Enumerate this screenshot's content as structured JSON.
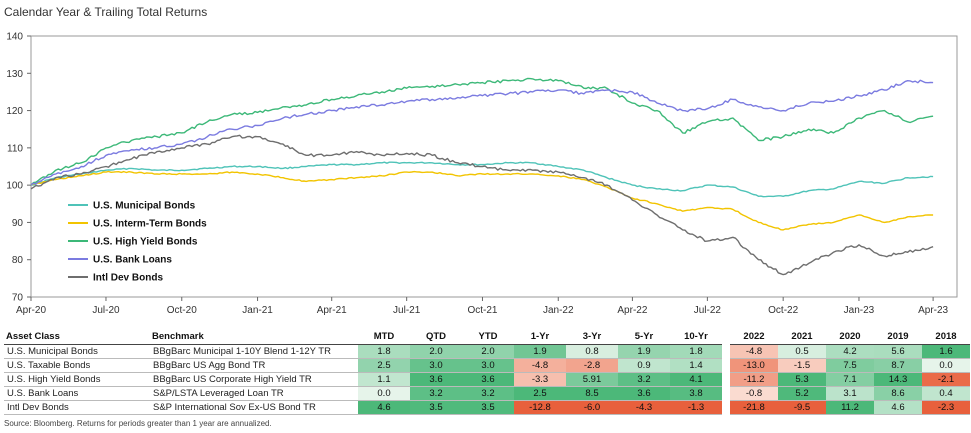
{
  "title": "Calendar Year & Trailing Total Returns",
  "source": "Source: Bloomberg. Returns for periods greater than 1 year are annualized.",
  "chart_data": {
    "type": "line",
    "ylim": [
      70,
      140
    ],
    "yticks": [
      70,
      80,
      90,
      100,
      110,
      120,
      130,
      140
    ],
    "xlim": [
      "2020-04-01",
      "2023-04-30"
    ],
    "xticks": [
      {
        "date": "2020-04-01",
        "label": "Apr-20"
      },
      {
        "date": "2020-07-01",
        "label": "Jul-20"
      },
      {
        "date": "2020-10-01",
        "label": "Oct-20"
      },
      {
        "date": "2021-01-01",
        "label": "Jan-21"
      },
      {
        "date": "2021-04-01",
        "label": "Apr-21"
      },
      {
        "date": "2021-07-01",
        "label": "Jul-21"
      },
      {
        "date": "2021-10-01",
        "label": "Oct-21"
      },
      {
        "date": "2022-01-01",
        "label": "Jan-22"
      },
      {
        "date": "2022-04-01",
        "label": "Apr-22"
      },
      {
        "date": "2022-07-01",
        "label": "Jul-22"
      },
      {
        "date": "2022-10-01",
        "label": "Oct-22"
      },
      {
        "date": "2023-01-01",
        "label": "Jan-23"
      },
      {
        "date": "2023-04-01",
        "label": "Apr-23"
      }
    ],
    "grid": false,
    "legend": "left",
    "series": [
      {
        "name": "U.S.  Municipal Bonds",
        "color": "#4fc3b8",
        "points": [
          [
            "2020-04-01",
            100
          ],
          [
            "2020-05-01",
            102
          ],
          [
            "2020-06-01",
            103
          ],
          [
            "2020-07-01",
            104
          ],
          [
            "2020-08-01",
            104.5
          ],
          [
            "2020-09-01",
            104
          ],
          [
            "2020-10-01",
            104
          ],
          [
            "2020-11-01",
            104.5
          ],
          [
            "2020-12-01",
            105
          ],
          [
            "2021-01-01",
            105
          ],
          [
            "2021-02-01",
            104.5
          ],
          [
            "2021-03-01",
            105
          ],
          [
            "2021-04-01",
            105.5
          ],
          [
            "2021-05-01",
            105.5
          ],
          [
            "2021-06-01",
            106
          ],
          [
            "2021-07-01",
            106
          ],
          [
            "2021-08-01",
            106
          ],
          [
            "2021-09-01",
            105.5
          ],
          [
            "2021-10-01",
            105.5
          ],
          [
            "2021-11-01",
            106
          ],
          [
            "2021-12-01",
            106
          ],
          [
            "2022-01-01",
            105
          ],
          [
            "2022-02-01",
            104
          ],
          [
            "2022-03-01",
            102
          ],
          [
            "2022-04-01",
            100
          ],
          [
            "2022-05-01",
            99
          ],
          [
            "2022-06-01",
            98.5
          ],
          [
            "2022-07-01",
            100
          ],
          [
            "2022-08-01",
            99.5
          ],
          [
            "2022-09-01",
            97
          ],
          [
            "2022-10-01",
            97
          ],
          [
            "2022-11-01",
            98.5
          ],
          [
            "2022-12-01",
            99
          ],
          [
            "2023-01-01",
            101
          ],
          [
            "2023-02-01",
            100.5
          ],
          [
            "2023-03-01",
            102
          ],
          [
            "2023-04-01",
            102.3
          ]
        ]
      },
      {
        "name": "U.S. Interm-Term Bonds",
        "color": "#f2c400",
        "points": [
          [
            "2020-04-01",
            100
          ],
          [
            "2020-05-01",
            101.5
          ],
          [
            "2020-06-01",
            102.5
          ],
          [
            "2020-07-01",
            103.5
          ],
          [
            "2020-08-01",
            103.5
          ],
          [
            "2020-09-01",
            103
          ],
          [
            "2020-10-01",
            103
          ],
          [
            "2020-11-01",
            103
          ],
          [
            "2020-12-01",
            103.5
          ],
          [
            "2021-01-01",
            103
          ],
          [
            "2021-02-01",
            102
          ],
          [
            "2021-03-01",
            101
          ],
          [
            "2021-04-01",
            101.5
          ],
          [
            "2021-05-01",
            102
          ],
          [
            "2021-06-01",
            102.5
          ],
          [
            "2021-07-01",
            103.5
          ],
          [
            "2021-08-01",
            103.5
          ],
          [
            "2021-09-01",
            102.5
          ],
          [
            "2021-10-01",
            103
          ],
          [
            "2021-11-01",
            103
          ],
          [
            "2021-12-01",
            103
          ],
          [
            "2022-01-01",
            102.5
          ],
          [
            "2022-02-01",
            101.5
          ],
          [
            "2022-03-01",
            99.5
          ],
          [
            "2022-04-01",
            96.5
          ],
          [
            "2022-05-01",
            95
          ],
          [
            "2022-06-01",
            93
          ],
          [
            "2022-07-01",
            94
          ],
          [
            "2022-08-01",
            93.5
          ],
          [
            "2022-09-01",
            90
          ],
          [
            "2022-10-01",
            88
          ],
          [
            "2022-11-01",
            89.5
          ],
          [
            "2022-12-01",
            90
          ],
          [
            "2023-01-01",
            92
          ],
          [
            "2023-02-01",
            90
          ],
          [
            "2023-03-01",
            91.5
          ],
          [
            "2023-04-01",
            92
          ]
        ]
      },
      {
        "name": "U.S. High Yield Bonds",
        "color": "#3cb878",
        "points": [
          [
            "2020-04-01",
            100
          ],
          [
            "2020-05-01",
            104
          ],
          [
            "2020-06-01",
            106
          ],
          [
            "2020-07-01",
            110
          ],
          [
            "2020-08-01",
            112
          ],
          [
            "2020-09-01",
            113
          ],
          [
            "2020-10-01",
            114
          ],
          [
            "2020-11-01",
            117
          ],
          [
            "2020-12-01",
            119
          ],
          [
            "2021-01-01",
            119.5
          ],
          [
            "2021-02-01",
            121
          ],
          [
            "2021-03-01",
            121.5
          ],
          [
            "2021-04-01",
            123
          ],
          [
            "2021-05-01",
            124
          ],
          [
            "2021-06-01",
            125
          ],
          [
            "2021-07-01",
            126
          ],
          [
            "2021-08-01",
            126.5
          ],
          [
            "2021-09-01",
            127
          ],
          [
            "2021-10-01",
            127.5
          ],
          [
            "2021-11-01",
            128
          ],
          [
            "2021-12-01",
            128.5
          ],
          [
            "2022-01-01",
            128
          ],
          [
            "2022-02-01",
            126
          ],
          [
            "2022-03-01",
            126
          ],
          [
            "2022-04-01",
            122
          ],
          [
            "2022-05-01",
            120
          ],
          [
            "2022-06-01",
            114
          ],
          [
            "2022-07-01",
            117
          ],
          [
            "2022-08-01",
            118
          ],
          [
            "2022-09-01",
            112
          ],
          [
            "2022-10-01",
            113
          ],
          [
            "2022-11-01",
            115
          ],
          [
            "2022-12-01",
            114
          ],
          [
            "2023-01-01",
            118
          ],
          [
            "2023-02-01",
            120
          ],
          [
            "2023-03-01",
            117
          ],
          [
            "2023-04-01",
            118.5
          ]
        ]
      },
      {
        "name": "U.S. Bank Loans",
        "color": "#7b7be0",
        "points": [
          [
            "2020-04-01",
            100
          ],
          [
            "2020-05-01",
            103
          ],
          [
            "2020-06-01",
            105
          ],
          [
            "2020-07-01",
            108
          ],
          [
            "2020-08-01",
            109.5
          ],
          [
            "2020-09-01",
            110
          ],
          [
            "2020-10-01",
            111
          ],
          [
            "2020-11-01",
            113
          ],
          [
            "2020-12-01",
            115
          ],
          [
            "2021-01-01",
            116
          ],
          [
            "2021-02-01",
            118
          ],
          [
            "2021-03-01",
            119
          ],
          [
            "2021-04-01",
            120
          ],
          [
            "2021-05-01",
            121
          ],
          [
            "2021-06-01",
            121.5
          ],
          [
            "2021-07-01",
            122.5
          ],
          [
            "2021-08-01",
            123
          ],
          [
            "2021-09-01",
            123.5
          ],
          [
            "2021-10-01",
            124
          ],
          [
            "2021-11-01",
            124.5
          ],
          [
            "2021-12-01",
            125
          ],
          [
            "2022-01-01",
            125.5
          ],
          [
            "2022-02-01",
            124.5
          ],
          [
            "2022-03-01",
            125.5
          ],
          [
            "2022-04-01",
            125
          ],
          [
            "2022-05-01",
            122
          ],
          [
            "2022-06-01",
            120
          ],
          [
            "2022-07-01",
            120.5
          ],
          [
            "2022-08-01",
            123
          ],
          [
            "2022-09-01",
            121
          ],
          [
            "2022-10-01",
            120
          ],
          [
            "2022-11-01",
            122
          ],
          [
            "2022-12-01",
            122.5
          ],
          [
            "2023-01-01",
            124
          ],
          [
            "2023-02-01",
            125.5
          ],
          [
            "2023-03-01",
            128
          ],
          [
            "2023-04-01",
            127.5
          ]
        ]
      },
      {
        "name": "Intl Dev Bonds",
        "color": "#6e6e6e",
        "points": [
          [
            "2020-04-01",
            99
          ],
          [
            "2020-05-01",
            102
          ],
          [
            "2020-06-01",
            103
          ],
          [
            "2020-07-01",
            105
          ],
          [
            "2020-08-01",
            107
          ],
          [
            "2020-09-01",
            109
          ],
          [
            "2020-10-01",
            110
          ],
          [
            "2020-11-01",
            111
          ],
          [
            "2020-12-01",
            113
          ],
          [
            "2021-01-01",
            113
          ],
          [
            "2021-02-01",
            111
          ],
          [
            "2021-03-01",
            108
          ],
          [
            "2021-04-01",
            108
          ],
          [
            "2021-05-01",
            109
          ],
          [
            "2021-06-01",
            108
          ],
          [
            "2021-07-01",
            108.5
          ],
          [
            "2021-08-01",
            108
          ],
          [
            "2021-09-01",
            106
          ],
          [
            "2021-10-01",
            105
          ],
          [
            "2021-11-01",
            104
          ],
          [
            "2021-12-01",
            104
          ],
          [
            "2022-01-01",
            103.5
          ],
          [
            "2022-02-01",
            102
          ],
          [
            "2022-03-01",
            100
          ],
          [
            "2022-04-01",
            96
          ],
          [
            "2022-05-01",
            92
          ],
          [
            "2022-06-01",
            88
          ],
          [
            "2022-07-01",
            85
          ],
          [
            "2022-08-01",
            86
          ],
          [
            "2022-09-01",
            80
          ],
          [
            "2022-10-01",
            76
          ],
          [
            "2022-11-01",
            79
          ],
          [
            "2022-12-01",
            82
          ],
          [
            "2023-01-01",
            84
          ],
          [
            "2023-02-01",
            81
          ],
          [
            "2023-03-01",
            82
          ],
          [
            "2023-04-01",
            83.5
          ]
        ]
      }
    ]
  },
  "table": {
    "headers": [
      "Asset Class",
      "Benchmark",
      "MTD",
      "QTD",
      "YTD",
      "1-Yr",
      "3-Yr",
      "5-Yr",
      "10-Yr",
      "2022",
      "2021",
      "2020",
      "2019",
      "2018"
    ],
    "rows": [
      {
        "asset": "U.S. Municipal Bonds",
        "bench": "BBgBarc Municipal 1-10Y Blend 1-12Y TR",
        "vals": [
          "1.8",
          "2.0",
          "2.0",
          "1.9",
          "0.8",
          "1.9",
          "1.8",
          "-4.8",
          "0.5",
          "4.2",
          "5.6",
          "1.6"
        ]
      },
      {
        "asset": "U.S. Taxable Bonds",
        "bench": "BBgBarc US Agg Bond TR",
        "vals": [
          "2.5",
          "3.0",
          "3.0",
          "-4.8",
          "-2.8",
          "0.9",
          "1.4",
          "-13.0",
          "-1.5",
          "7.5",
          "8.7",
          "0.0"
        ]
      },
      {
        "asset": "U.S. High Yield Bonds",
        "bench": "BBgBarc US Corporate High Yield TR",
        "vals": [
          "1.1",
          "3.6",
          "3.6",
          "-3.3",
          "5.91",
          "3.2",
          "4.1",
          "-11.2",
          "5.3",
          "7.1",
          "14.3",
          "-2.1"
        ]
      },
      {
        "asset": "U.S. Bank Loans",
        "bench": "S&P/LSTA Leveraged Loan TR",
        "vals": [
          "0.0",
          "3.2",
          "3.2",
          "2.5",
          "8.5",
          "3.6",
          "3.8",
          "-0.8",
          "5.2",
          "3.1",
          "8.6",
          "0.4"
        ]
      },
      {
        "asset": "Intl Dev Bonds",
        "bench": "S&P International Sov Ex-US Bond TR",
        "vals": [
          "4.6",
          "3.5",
          "3.5",
          "-12.8",
          "-6.0",
          "-4.3",
          "-1.3",
          "-21.8",
          "-9.5",
          "11.2",
          "4.6",
          "-2.3"
        ]
      }
    ]
  },
  "heat_colors": {
    "pos_strong": "#4cb879",
    "pos_light": "#e6f4ea",
    "neg_strong": "#e8603c",
    "neg_light": "#fbe0d6"
  }
}
